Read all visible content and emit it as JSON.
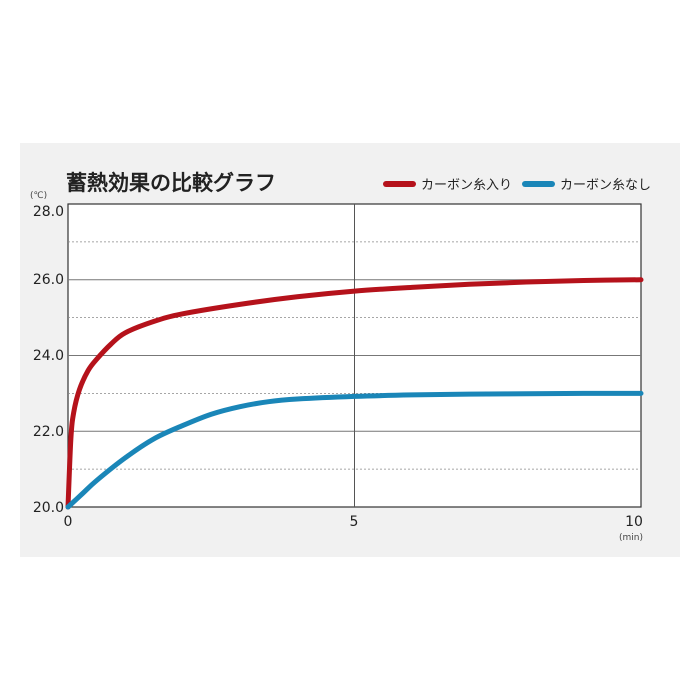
{
  "chart_data": {
    "type": "line",
    "title": "蓄熱効果の比較グラフ",
    "ylabel": "(℃)",
    "xlabel": "(min)",
    "xlim": [
      0,
      10
    ],
    "ylim": [
      20,
      28
    ],
    "x_ticks": [
      "0",
      "5",
      "10"
    ],
    "y_ticks": [
      "20.0",
      "22.0",
      "24.0",
      "26.0",
      "28.0"
    ],
    "grid": "solid major lines at 22, 24, 26 and x=5; dotted minor lines at 21, 23, 25, 27",
    "legend": "top-right",
    "series": [
      {
        "name": "カーボン糸入り",
        "color": "#b5121b",
        "x": [
          0,
          0.05,
          0.1,
          0.2,
          0.35,
          0.5,
          0.75,
          1,
          1.5,
          2,
          3,
          4,
          5,
          6,
          7,
          8,
          9,
          10
        ],
        "y": [
          20.0,
          21.8,
          22.5,
          23.1,
          23.6,
          23.9,
          24.3,
          24.6,
          24.9,
          25.1,
          25.35,
          25.55,
          25.7,
          25.8,
          25.88,
          25.94,
          25.98,
          26.0
        ]
      },
      {
        "name": "カーボン糸なし",
        "color": "#1a86b8",
        "x": [
          0,
          0.25,
          0.5,
          1,
          1.5,
          2,
          2.5,
          3,
          3.5,
          4,
          5,
          6,
          7,
          8,
          9,
          10
        ],
        "y": [
          20.0,
          20.35,
          20.7,
          21.3,
          21.8,
          22.15,
          22.45,
          22.65,
          22.78,
          22.85,
          22.92,
          22.96,
          22.98,
          22.99,
          23.0,
          23.0
        ]
      }
    ]
  }
}
